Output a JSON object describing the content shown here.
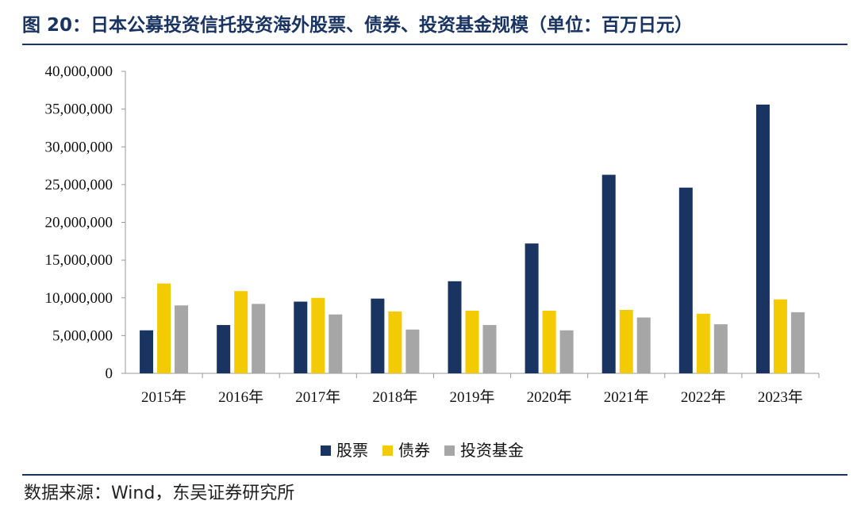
{
  "header": {
    "title": "图 20：日本公募投资信托投资海外股票、债券、投资基金规模（单位：百万日元）"
  },
  "footer": {
    "source": "数据来源：Wind，东吴证券研究所"
  },
  "chart_data": {
    "type": "bar",
    "title": "图 20：日本公募投资信托投资海外股票、债券、投资基金规模（单位：百万日元）",
    "xlabel": "",
    "ylabel": "",
    "categories": [
      "2015年",
      "2016年",
      "2017年",
      "2018年",
      "2019年",
      "2020年",
      "2021年",
      "2022年",
      "2023年"
    ],
    "series": [
      {
        "name": "股票",
        "color": "#1a3462",
        "values": [
          5700000,
          6400000,
          9500000,
          9900000,
          12200000,
          17200000,
          26300000,
          24600000,
          35600000
        ]
      },
      {
        "name": "债券",
        "color": "#f2cb05",
        "values": [
          11900000,
          10900000,
          10000000,
          8200000,
          8300000,
          8300000,
          8400000,
          7900000,
          9800000
        ]
      },
      {
        "name": "投资基金",
        "color": "#a6a6a6",
        "values": [
          9000000,
          9200000,
          7800000,
          5800000,
          6400000,
          5700000,
          7400000,
          6500000,
          8100000
        ]
      }
    ],
    "ylim": [
      0,
      40000000
    ],
    "yticks": [
      "0",
      "5,000,000",
      "10,000,000",
      "15,000,000",
      "20,000,000",
      "25,000,000",
      "30,000,000",
      "35,000,000",
      "40,000,000"
    ],
    "grid": false,
    "legend_position": "bottom"
  }
}
